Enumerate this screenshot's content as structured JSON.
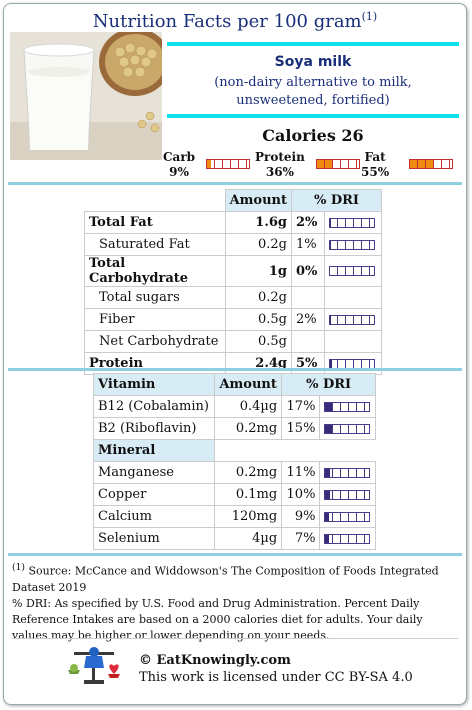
{
  "header": {
    "title": "Nutrition Facts per 100 gram",
    "footnote_mark": "(1)"
  },
  "food": {
    "name": "Soya milk",
    "description": "(non-dairy alternative to milk, unsweetened, fortified)",
    "photo_icon": "soy-milk-glass-photo"
  },
  "calories": "Calories 26",
  "macros": [
    {
      "label": "Carb",
      "pct": "9%",
      "fraction": 0.09
    },
    {
      "label": "Protein",
      "pct": "36%",
      "fraction": 0.36
    },
    {
      "label": "Fat",
      "pct": "55%",
      "fraction": 0.55
    }
  ],
  "nutrients": {
    "headers": {
      "amount": "Amount",
      "dri": "% DRI"
    },
    "rows": [
      {
        "name": "Total Fat",
        "amount": "1.6g",
        "dri": "2%",
        "fraction": 0.02,
        "bold": true,
        "indent": false
      },
      {
        "name": "Saturated Fat",
        "amount": "0.2g",
        "dri": "1%",
        "fraction": 0.01,
        "bold": false,
        "indent": true
      },
      {
        "name": "Total Carbohydrate",
        "amount": "1g",
        "dri": "0%",
        "fraction": 0.0,
        "bold": true,
        "indent": false
      },
      {
        "name": "Total sugars",
        "amount": "0.2g",
        "dri": "",
        "fraction": null,
        "bold": false,
        "indent": true
      },
      {
        "name": "Fiber",
        "amount": "0.5g",
        "dri": "2%",
        "fraction": 0.02,
        "bold": false,
        "indent": true
      },
      {
        "name": "Net Carbohydrate",
        "amount": "0.5g",
        "dri": "",
        "fraction": null,
        "bold": false,
        "indent": true
      },
      {
        "name": "Protein",
        "amount": "2.4g",
        "dri": "5%",
        "fraction": 0.05,
        "bold": true,
        "indent": false
      }
    ]
  },
  "micros": {
    "vitamin_header": "Vitamin",
    "amount_header": "Amount",
    "dri_header": "% DRI",
    "vitamins": [
      {
        "name": "B12 (Cobalamin)",
        "amount": "0.4µg",
        "dri": "17%",
        "fraction": 0.17
      },
      {
        "name": "B2 (Riboflavin)",
        "amount": "0.2mg",
        "dri": "15%",
        "fraction": 0.15
      }
    ],
    "mineral_header": "Mineral",
    "minerals": [
      {
        "name": "Manganese",
        "amount": "0.2mg",
        "dri": "11%",
        "fraction": 0.11
      },
      {
        "name": "Copper",
        "amount": "0.1mg",
        "dri": "10%",
        "fraction": 0.1
      },
      {
        "name": "Calcium",
        "amount": "120mg",
        "dri": "9%",
        "fraction": 0.09
      },
      {
        "name": "Selenium",
        "amount": "4µg",
        "dri": "7%",
        "fraction": 0.07
      }
    ]
  },
  "footer": {
    "mark": "(1)",
    "source": " Source: McCance and Widdowson's The Composition of Foods Integrated Dataset 2019",
    "dri_note": "% DRI: As specified by U.S. Food and Drug Administration. Percent Daily Reference Intakes are based on a 2000 calories diet for adults. Your daily values may be higher or lower depending on your needs."
  },
  "credit": {
    "site": "© EatKnowingly.com",
    "license": "This work is licensed under CC BY-SA 4.0",
    "logo_icon": "balance-scale-logo-icon"
  }
}
